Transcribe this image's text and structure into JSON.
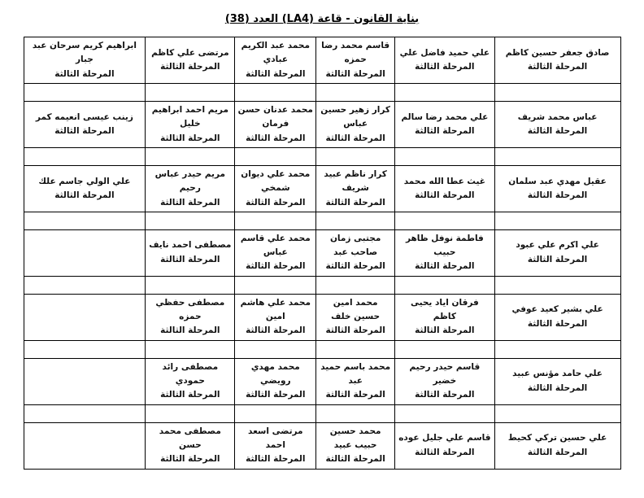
{
  "title": "بناية القانون - قاعة (LA4) العدد (38)",
  "table": {
    "stage_label": "المرحلة الثالثة",
    "rows": [
      {
        "type": "names",
        "cells": [
          "صادق جعفر حسين كاظم",
          "علي حميد فاضل علي",
          "قاسم محمد رضا حمزه",
          "محمد عبد الكريم عبادي",
          "مرتضى علي كاظم",
          "ابراهيم كريم سرحان عبد جبار"
        ]
      },
      {
        "type": "spacer",
        "cells": [
          "",
          "",
          "",
          "",
          "",
          ""
        ]
      },
      {
        "type": "names",
        "cells": [
          "عباس محمد شريف",
          "علي محمد رضا سالم",
          "كرار زهير حسين عباس",
          "محمد عدنان حسن فرمان",
          "مريم احمد ابراهيم خليل",
          "زينب عيسى انعيمه كمر"
        ]
      },
      {
        "type": "spacer",
        "cells": [
          "",
          "",
          "",
          "",
          "",
          ""
        ]
      },
      {
        "type": "names",
        "cells": [
          "عقيل مهدي عبد سلمان",
          "غيث عطا الله محمد",
          "كرار ناظم عبيد شريف",
          "محمد علي ديوان شمخي",
          "مريم حيدر عباس رحيم",
          "علي الولي جاسم علك"
        ]
      },
      {
        "type": "spacer",
        "cells": [
          "",
          "",
          "",
          "",
          "",
          ""
        ]
      },
      {
        "type": "names",
        "cells": [
          "علي اكرم علي عبود",
          "فاطمة نوفل ظاهر حبيب",
          "مجتبى زمان صاحب عبد",
          "محمد علي قاسم عباس",
          "مصطفى احمد نايف",
          ""
        ]
      },
      {
        "type": "spacer",
        "cells": [
          "",
          "",
          "",
          "",
          "",
          ""
        ]
      },
      {
        "type": "names",
        "cells": [
          "علي بشير كعيد عوفي",
          "فرقان اياد يحيى كاظم",
          "محمد امين حسين خلف",
          "محمد علي هاشم امين",
          "مصطفى حفظي حمزه",
          ""
        ]
      },
      {
        "type": "spacer",
        "cells": [
          "",
          "",
          "",
          "",
          "",
          ""
        ]
      },
      {
        "type": "names",
        "cells": [
          "علي حامد مؤنس عبيد",
          "قاسم حيدر رحيم خضير",
          "محمد باسم حميد عبد",
          "محمد مهدي رويضي",
          "مصطفى رائد حمودي",
          ""
        ]
      },
      {
        "type": "spacer",
        "cells": [
          "",
          "",
          "",
          "",
          "",
          ""
        ]
      },
      {
        "type": "names",
        "cells": [
          "علي حسين تركي كحيط",
          "قاسم علي جليل عوده",
          "محمد حسين حبيب عبيد",
          "مرتضى اسعد احمد",
          "مصطفى محمد حسن",
          ""
        ]
      }
    ]
  }
}
